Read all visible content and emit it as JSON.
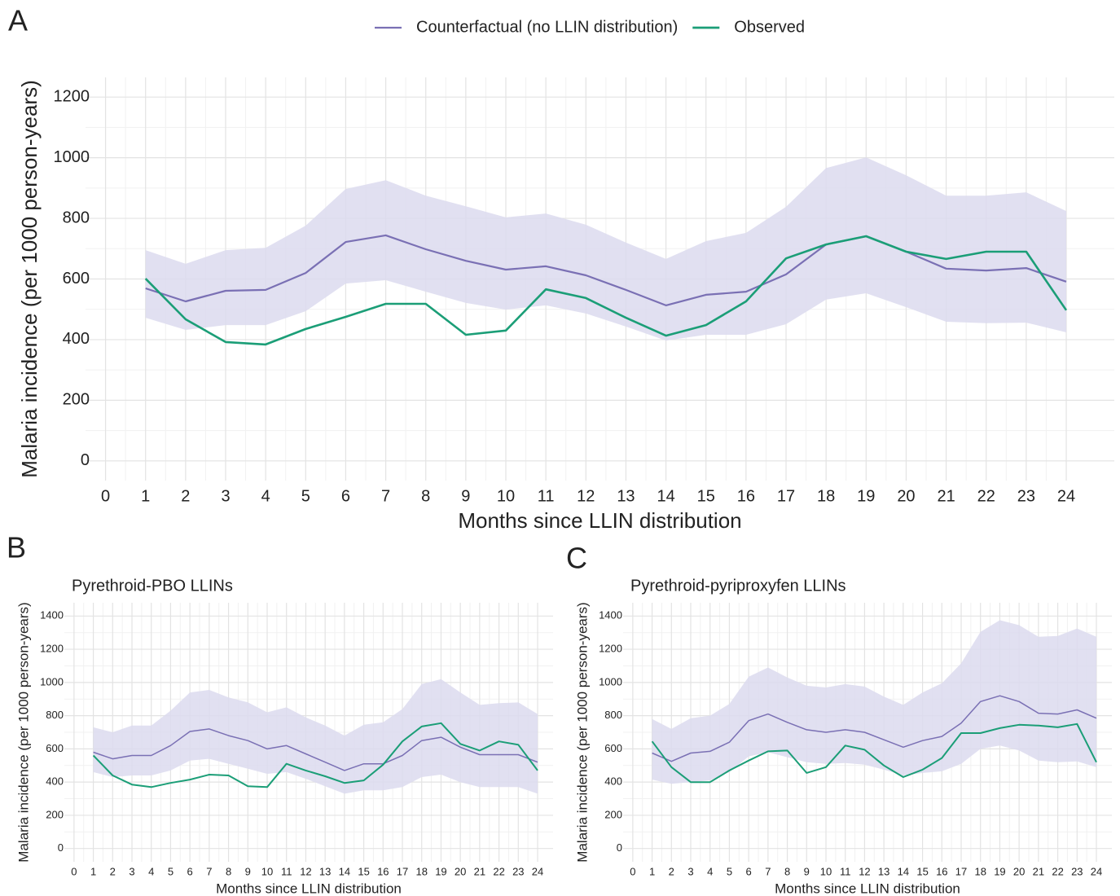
{
  "chart_data": [
    {
      "type": "line",
      "panel": "A",
      "x_label": "Months since LLIN distribution",
      "y_label": "Malaria incidence (per 1000 person-years)",
      "legend": true,
      "legend_position": "top",
      "x": [
        1,
        2,
        3,
        4,
        5,
        6,
        7,
        8,
        9,
        10,
        11,
        12,
        13,
        14,
        15,
        16,
        17,
        18,
        19,
        20,
        21,
        22,
        23,
        24
      ],
      "xlim": [
        -0.5,
        25.2
      ],
      "xticks": [
        0,
        1,
        2,
        3,
        4,
        5,
        6,
        7,
        8,
        9,
        10,
        11,
        12,
        13,
        14,
        15,
        16,
        17,
        18,
        19,
        20,
        21,
        22,
        23,
        24
      ],
      "ylim": [
        -65,
        1265
      ],
      "yticks": [
        0,
        200,
        400,
        600,
        800,
        1000,
        1200
      ],
      "grid": true,
      "series": [
        {
          "name": "Counterfactual (no LLIN distribution)",
          "color": "#7a70b4",
          "band_color": "#dcdaee",
          "values": [
            569,
            526,
            561,
            564,
            620,
            722,
            744,
            698,
            660,
            631,
            642,
            612,
            564,
            513,
            548,
            558,
            615,
            714,
            741,
            690,
            634,
            628,
            636,
            591
          ],
          "lower": [
            472,
            432,
            448,
            448,
            494,
            585,
            596,
            558,
            521,
            499,
            513,
            486,
            443,
            397,
            416,
            416,
            451,
            532,
            553,
            507,
            459,
            454,
            456,
            424
          ],
          "upper": [
            695,
            650,
            695,
            703,
            776,
            897,
            926,
            875,
            840,
            803,
            816,
            779,
            720,
            666,
            725,
            752,
            838,
            966,
            1001,
            942,
            875,
            875,
            886,
            824
          ]
        },
        {
          "name": "Observed",
          "color": "#1b9e77",
          "values": [
            601,
            467,
            392,
            384,
            435,
            475,
            518,
            518,
            416,
            430,
            566,
            537,
            472,
            413,
            448,
            526,
            668,
            714,
            741,
            690,
            666,
            690,
            690,
            497
          ]
        }
      ]
    },
    {
      "type": "line",
      "panel": "B",
      "title": "Pyrethroid-PBO LLINs",
      "x_label": "Months since LLIN distribution",
      "y_label": "Malaria incidence (per 1000 person-years)",
      "legend": false,
      "x": [
        1,
        2,
        3,
        4,
        5,
        6,
        7,
        8,
        9,
        10,
        11,
        12,
        13,
        14,
        15,
        16,
        17,
        18,
        19,
        20,
        21,
        22,
        23,
        24
      ],
      "xlim": [
        -0.5,
        24.8
      ],
      "xticks": [
        0,
        1,
        2,
        3,
        4,
        5,
        6,
        7,
        8,
        9,
        10,
        11,
        12,
        13,
        14,
        15,
        16,
        17,
        18,
        19,
        20,
        21,
        22,
        23,
        24
      ],
      "ylim": [
        -80,
        1480
      ],
      "yticks": [
        0,
        200,
        400,
        600,
        800,
        1000,
        1200,
        1400
      ],
      "grid": true,
      "series": [
        {
          "color": "#7a70b4",
          "band_color": "#dcdaee",
          "values": [
            580,
            540,
            560,
            560,
            620,
            705,
            720,
            680,
            650,
            600,
            620,
            570,
            520,
            470,
            510,
            510,
            560,
            650,
            670,
            610,
            565,
            565,
            565,
            520
          ],
          "lower": [
            460,
            430,
            440,
            440,
            470,
            530,
            540,
            510,
            480,
            450,
            460,
            420,
            375,
            330,
            350,
            350,
            370,
            430,
            445,
            400,
            370,
            370,
            370,
            330
          ],
          "upper": [
            730,
            700,
            740,
            740,
            830,
            940,
            955,
            910,
            880,
            820,
            850,
            790,
            740,
            680,
            745,
            760,
            840,
            990,
            1020,
            940,
            865,
            875,
            880,
            810
          ]
        },
        {
          "color": "#1b9e77",
          "values": [
            560,
            440,
            385,
            370,
            395,
            415,
            445,
            440,
            375,
            370,
            510,
            470,
            435,
            395,
            410,
            505,
            645,
            735,
            755,
            630,
            590,
            645,
            625,
            470
          ]
        }
      ]
    },
    {
      "type": "line",
      "panel": "C",
      "title": "Pyrethroid-pyriproxyfen LLINs",
      "x_label": "Months since LLIN distribution",
      "y_label": "Malaria incidence (per 1000 person-years)",
      "legend": false,
      "x": [
        1,
        2,
        3,
        4,
        5,
        6,
        7,
        8,
        9,
        10,
        11,
        12,
        13,
        14,
        15,
        16,
        17,
        18,
        19,
        20,
        21,
        22,
        23,
        24
      ],
      "xlim": [
        -0.5,
        24.8
      ],
      "xticks": [
        0,
        1,
        2,
        3,
        4,
        5,
        6,
        7,
        8,
        9,
        10,
        11,
        12,
        13,
        14,
        15,
        16,
        17,
        18,
        19,
        20,
        21,
        22,
        23,
        24
      ],
      "ylim": [
        -80,
        1480
      ],
      "yticks": [
        0,
        200,
        400,
        600,
        800,
        1000,
        1200,
        1400
      ],
      "grid": true,
      "series": [
        {
          "color": "#7a70b4",
          "band_color": "#dcdaee",
          "values": [
            575,
            525,
            575,
            585,
            640,
            770,
            810,
            760,
            715,
            700,
            715,
            700,
            655,
            610,
            650,
            675,
            755,
            885,
            920,
            885,
            815,
            810,
            835,
            785
          ],
          "lower": [
            415,
            390,
            400,
            410,
            460,
            555,
            580,
            550,
            520,
            510,
            515,
            505,
            475,
            440,
            455,
            465,
            510,
            600,
            620,
            590,
            530,
            520,
            525,
            490
          ],
          "upper": [
            780,
            720,
            785,
            800,
            870,
            1035,
            1090,
            1030,
            980,
            970,
            990,
            975,
            915,
            865,
            940,
            995,
            1115,
            1305,
            1375,
            1345,
            1275,
            1280,
            1325,
            1275
          ]
        },
        {
          "color": "#1b9e77",
          "values": [
            645,
            490,
            400,
            400,
            470,
            530,
            585,
            590,
            455,
            490,
            620,
            595,
            500,
            430,
            475,
            545,
            695,
            695,
            725,
            745,
            740,
            730,
            750,
            520
          ]
        }
      ]
    }
  ]
}
